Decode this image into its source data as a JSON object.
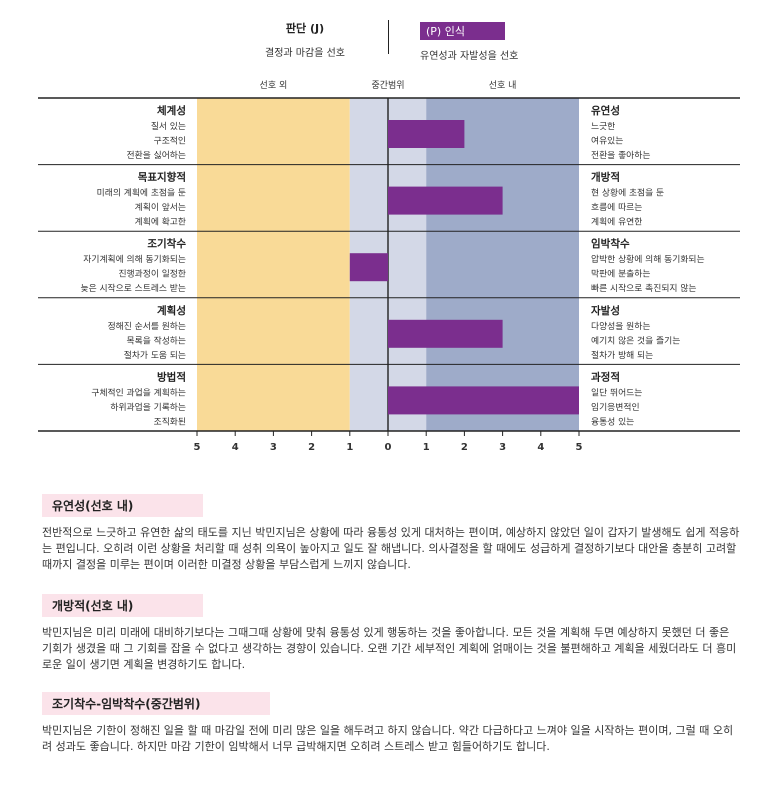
{
  "header": {
    "left_title": "판단 (J)",
    "left_sub": "결정과 마감을 선호",
    "right_title": "(P) 인식",
    "right_sub": "유연성과 자발성을 선호"
  },
  "colors": {
    "left_zone": "#f9da97",
    "middle_zone": "#d3d8e7",
    "right_zone": "#9eabc9",
    "bar": "#7b2e8e"
  },
  "chart_data": {
    "type": "bar",
    "orientation": "horizontal-diverging",
    "zone_labels": [
      "선호 외",
      "중간범위",
      "선호 내"
    ],
    "xlim": [
      -5,
      5
    ],
    "tick_labels": [
      "5",
      "4",
      "3",
      "2",
      "1",
      "0",
      "1",
      "2",
      "3",
      "4",
      "5"
    ],
    "zones": [
      [
        -5,
        -1
      ],
      [
        -1,
        1
      ],
      [
        1,
        5
      ]
    ],
    "rows": [
      {
        "left_title": "체계성",
        "left_desc": [
          "질서 있는",
          "구조적인",
          "전환을 싫어하는"
        ],
        "right_title": "유연성",
        "right_desc": [
          "느긋한",
          "여유있는",
          "전환을 좋아하는"
        ],
        "value": 2
      },
      {
        "left_title": "목표지향적",
        "left_desc": [
          "미래의 계획에 초점을 둔",
          "계획이 앞서는",
          "계획에 확고한"
        ],
        "right_title": "개방적",
        "right_desc": [
          "현 상황에 초점을 둔",
          "흐름에 따르는",
          "계획에 유연한"
        ],
        "value": 3
      },
      {
        "left_title": "조기착수",
        "left_desc": [
          "자기계획에 의해 동기화되는",
          "진행과정이 일정한",
          "늦은 시작으로 스트레스 받는"
        ],
        "right_title": "임박착수",
        "right_desc": [
          "압박한 상황에 의해 동기화되는",
          "막판에 분출하는",
          "빠른 시작으로 촉진되지 않는"
        ],
        "value": -1
      },
      {
        "left_title": "계획성",
        "left_desc": [
          "정해진 순서를 원하는",
          "목록을 작성하는",
          "절차가 도움 되는"
        ],
        "right_title": "자발성",
        "right_desc": [
          "다양성을 원하는",
          "예기치 않은 것을 즐기는",
          "절차가 방해 되는"
        ],
        "value": 3
      },
      {
        "left_title": "방법적",
        "left_desc": [
          "구체적인 과업을 계획하는",
          "하위과업을 기록하는",
          "조직화된"
        ],
        "right_title": "과정적",
        "right_desc": [
          "일단 뛰어드는",
          "임기응변적인",
          "융통성 있는"
        ],
        "value": 5
      }
    ]
  },
  "sections": [
    {
      "heading": "유연성(선호 내)",
      "body": "전반적으로 느긋하고 유연한 삶의 태도를 지닌 박민지님은 상황에 따라 융통성 있게 대처하는 편이며, 예상하지 않았던 일이 갑자기 발생해도 쉽게 적응하는 편입니다. 오히려 이런 상황을 처리할 때 성취 의욕이 높아지고 일도 잘 해냅니다. 의사결정을 할 때에도 성급하게 결정하기보다 대안을 충분히 고려할 때까지 결정을 미루는 편이며 이러한 미결정 상황을 부담스럽게 느끼지 않습니다."
    },
    {
      "heading": "개방적(선호 내)",
      "body": "박민지님은 미리 미래에 대비하기보다는 그때그때 상황에 맞춰 융통성 있게 행동하는 것을 좋아합니다. 모든 것을 계획해 두면 예상하지 못했던 더 좋은 기회가 생겼을 때 그 기회를 잡을 수 없다고 생각하는 경향이 있습니다. 오랜 기간 세부적인 계획에 얽매이는 것을 불편해하고 계획을 세웠더라도 더 흥미로운 일이 생기면 계획을 변경하기도 합니다."
    },
    {
      "heading": "조기착수-임박착수(중간범위)",
      "body": "박민지님은 기한이 정해진 일을 할 때 마감일 전에 미리 많은 일을 해두려고 하지 않습니다. 약간 다급하다고 느껴야 일을 시작하는 편이며, 그럴 때 오히려 성과도 좋습니다. 하지만 마감 기한이 임박해서 너무 급박해지면 오히려 스트레스 받고 힘들어하기도 합니다."
    }
  ]
}
